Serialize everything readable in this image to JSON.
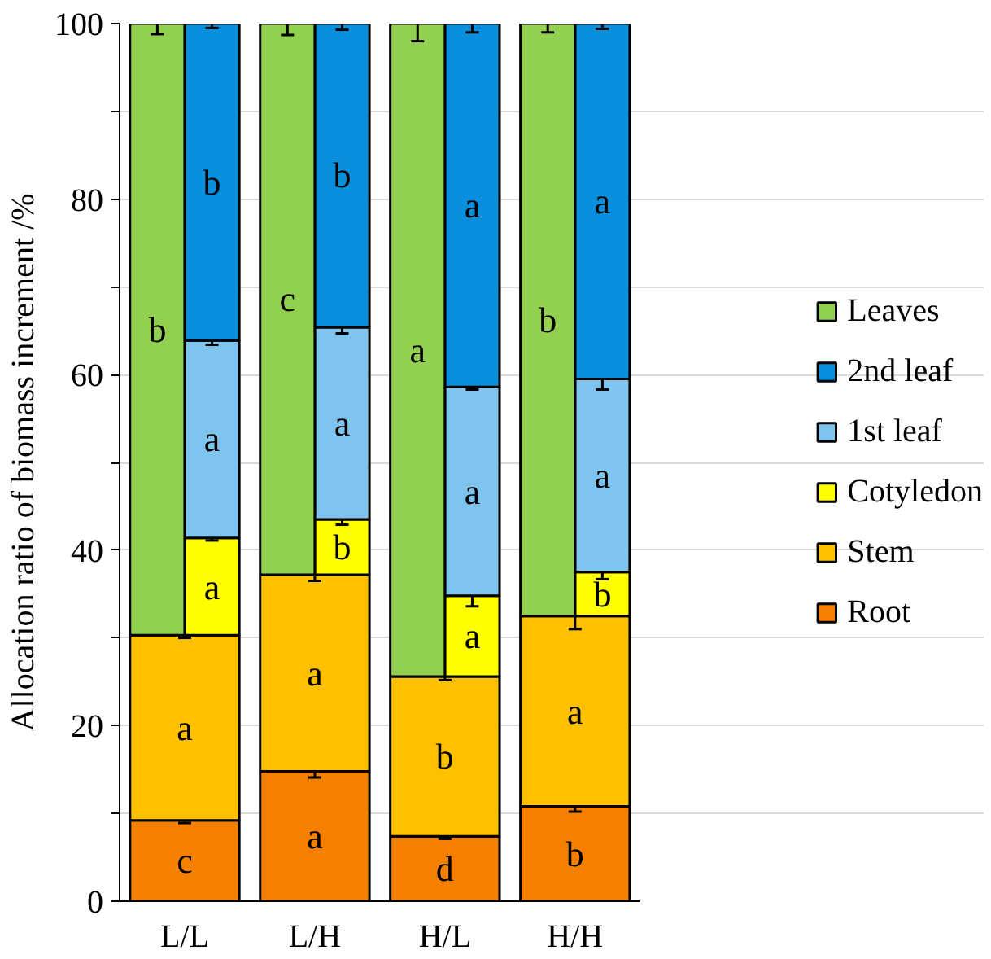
{
  "chart_data": {
    "type": "bar",
    "ylabel": "Allocation ratio of biomass increment /%",
    "ylim": [
      0,
      100
    ],
    "yticks": [
      0,
      {
        "value": 10,
        "label": null
      },
      20,
      {
        "value": 30,
        "label": null
      },
      40,
      {
        "value": 50,
        "label": null
      },
      60,
      {
        "value": 70,
        "label": null
      },
      80,
      {
        "value": 90,
        "label": null
      },
      100
    ],
    "categories": [
      "L/L",
      "L/H",
      "H/L",
      "H/H"
    ],
    "grid": "y",
    "legend": "right",
    "series": [
      {
        "name": "Root",
        "color": "#f57f00",
        "base": [
          0,
          0,
          0,
          0
        ],
        "values": [
          9.2,
          14.8,
          7.4,
          10.8
        ],
        "errors": [
          0.3,
          0.7,
          0.3,
          0.6
        ],
        "value_labels": [
          "c",
          "a",
          "d",
          "b"
        ]
      },
      {
        "name": "Stem",
        "color": "#ffc000",
        "base": [
          9.2,
          14.8,
          7.4,
          10.8
        ],
        "values": [
          21.1,
          22.4,
          18.2,
          21.7
        ],
        "errors": [
          0.3,
          0.7,
          0.4,
          1.5
        ],
        "value_labels": [
          "a",
          "a",
          "b",
          "a"
        ]
      },
      {
        "name": "Cotyledon",
        "color": "#ffff00",
        "base": [
          30.3,
          37.2,
          25.6,
          32.5
        ],
        "values": [
          11.1,
          6.3,
          9.2,
          5.0
        ],
        "errors": [
          0.3,
          0.6,
          1.2,
          0.8
        ],
        "value_labels": [
          "a",
          "b",
          "a",
          "b"
        ]
      },
      {
        "name": "1st leaf",
        "color": "#7fc4ee",
        "base": [
          41.4,
          43.5,
          34.8,
          37.5
        ],
        "values": [
          22.5,
          21.9,
          23.8,
          22.0
        ],
        "errors": [
          0.5,
          0.7,
          0.3,
          1.2
        ],
        "value_labels": [
          "a",
          "a",
          "a",
          "a"
        ]
      },
      {
        "name": "2nd leaf",
        "color": "#0a8fdc",
        "base": [
          63.9,
          65.4,
          58.6,
          59.5
        ],
        "values": [
          36.1,
          34.6,
          41.4,
          40.5
        ],
        "errors": [
          0.5,
          0.7,
          1.0,
          0.6
        ],
        "value_labels": [
          "b",
          "b",
          "a",
          "a"
        ]
      },
      {
        "name": "Leaves",
        "color": "#92d050",
        "base": [
          30.3,
          37.2,
          25.6,
          32.5
        ],
        "values": [
          69.7,
          62.8,
          74.4,
          67.5
        ],
        "errors": [
          1.2,
          1.3,
          2.0,
          1.0
        ],
        "value_labels": [
          "b",
          "c",
          "a",
          "b"
        ]
      }
    ]
  }
}
